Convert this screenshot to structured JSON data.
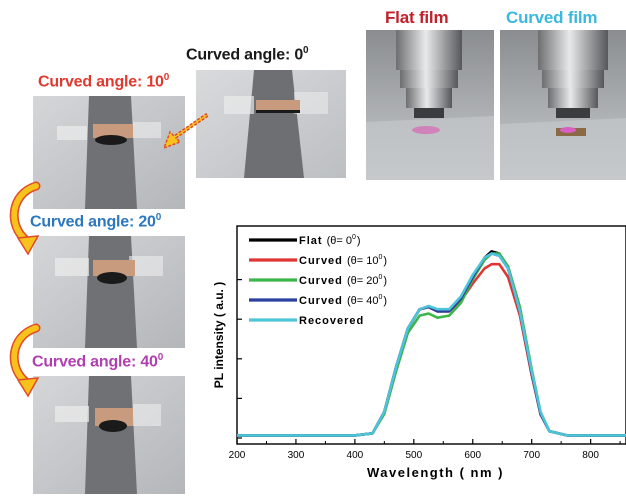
{
  "labels": {
    "angle0": {
      "text": "Curved angle: 0",
      "sup": "0",
      "color": "#1a1a1a"
    },
    "angle10": {
      "text": "Curved angle: 10",
      "sup": "0",
      "color": "#e03a2f"
    },
    "angle20": {
      "text": "Curved angle: 20",
      "sup": "0",
      "color": "#2b78bf"
    },
    "angle40": {
      "text": "Curved angle: 40",
      "sup": "0",
      "color": "#b13fb0"
    },
    "flat_film": {
      "text": "Flat film",
      "color": "#c0212c"
    },
    "curved_film": {
      "text": "Curved film",
      "color": "#3bb8e0"
    }
  },
  "chart_data": {
    "type": "line",
    "xlabel": "Wavelength ( nm )",
    "ylabel": "PL intensity ( a.u. )",
    "xlim": [
      200,
      860
    ],
    "x_ticks": [
      200,
      300,
      400,
      500,
      600,
      700,
      800
    ],
    "y_tick_labels": [],
    "legend_position": "top-left",
    "series": [
      {
        "name": "Flat (θ= 0°)",
        "color": "#000000",
        "legend_parts": [
          "Flat",
          "(θ= 0",
          "0",
          ")"
        ],
        "points": [
          [
            200,
            0.04
          ],
          [
            300,
            0.04
          ],
          [
            400,
            0.04
          ],
          [
            430,
            0.05
          ],
          [
            450,
            0.15
          ],
          [
            470,
            0.36
          ],
          [
            490,
            0.54
          ],
          [
            510,
            0.63
          ],
          [
            525,
            0.64
          ],
          [
            540,
            0.62
          ],
          [
            560,
            0.62
          ],
          [
            580,
            0.68
          ],
          [
            600,
            0.78
          ],
          [
            620,
            0.87
          ],
          [
            632,
            0.9
          ],
          [
            645,
            0.89
          ],
          [
            660,
            0.82
          ],
          [
            680,
            0.62
          ],
          [
            700,
            0.33
          ],
          [
            715,
            0.14
          ],
          [
            730,
            0.06
          ],
          [
            760,
            0.04
          ],
          [
            860,
            0.04
          ]
        ]
      },
      {
        "name": "Curved (θ= 10°)",
        "color": "#e03535",
        "legend_parts": [
          "Curved",
          "(θ= 10",
          "0",
          ")"
        ],
        "points": [
          [
            200,
            0.04
          ],
          [
            300,
            0.04
          ],
          [
            400,
            0.04
          ],
          [
            430,
            0.05
          ],
          [
            450,
            0.15
          ],
          [
            470,
            0.36
          ],
          [
            490,
            0.54
          ],
          [
            510,
            0.63
          ],
          [
            525,
            0.64
          ],
          [
            540,
            0.62
          ],
          [
            560,
            0.62
          ],
          [
            580,
            0.67
          ],
          [
            600,
            0.75
          ],
          [
            620,
            0.82
          ],
          [
            632,
            0.84
          ],
          [
            645,
            0.84
          ],
          [
            660,
            0.78
          ],
          [
            680,
            0.6
          ],
          [
            700,
            0.32
          ],
          [
            715,
            0.14
          ],
          [
            730,
            0.06
          ],
          [
            760,
            0.04
          ],
          [
            860,
            0.04
          ]
        ]
      },
      {
        "name": "Curved (θ= 20°)",
        "color": "#3cb64a",
        "legend_parts": [
          "Curved",
          "(θ= 20",
          "0",
          ")"
        ],
        "points": [
          [
            200,
            0.04
          ],
          [
            300,
            0.04
          ],
          [
            400,
            0.04
          ],
          [
            430,
            0.05
          ],
          [
            450,
            0.14
          ],
          [
            470,
            0.34
          ],
          [
            490,
            0.52
          ],
          [
            510,
            0.6
          ],
          [
            525,
            0.61
          ],
          [
            540,
            0.59
          ],
          [
            560,
            0.6
          ],
          [
            580,
            0.66
          ],
          [
            600,
            0.77
          ],
          [
            620,
            0.86
          ],
          [
            632,
            0.89
          ],
          [
            645,
            0.89
          ],
          [
            660,
            0.83
          ],
          [
            680,
            0.64
          ],
          [
            700,
            0.35
          ],
          [
            715,
            0.15
          ],
          [
            730,
            0.06
          ],
          [
            760,
            0.04
          ],
          [
            860,
            0.04
          ]
        ]
      },
      {
        "name": "Curved (θ= 40°)",
        "color": "#2b3f9e",
        "legend_parts": [
          "Curved",
          "(θ= 40",
          "0",
          ")"
        ],
        "points": [
          [
            200,
            0.04
          ],
          [
            300,
            0.04
          ],
          [
            400,
            0.04
          ],
          [
            430,
            0.05
          ],
          [
            450,
            0.15
          ],
          [
            470,
            0.36
          ],
          [
            490,
            0.54
          ],
          [
            510,
            0.63
          ],
          [
            525,
            0.64
          ],
          [
            540,
            0.62
          ],
          [
            560,
            0.62
          ],
          [
            580,
            0.68
          ],
          [
            600,
            0.78
          ],
          [
            620,
            0.87
          ],
          [
            632,
            0.89
          ],
          [
            645,
            0.88
          ],
          [
            660,
            0.82
          ],
          [
            680,
            0.62
          ],
          [
            700,
            0.33
          ],
          [
            715,
            0.14
          ],
          [
            730,
            0.06
          ],
          [
            760,
            0.04
          ],
          [
            860,
            0.04
          ]
        ]
      },
      {
        "name": "Recovered",
        "color": "#4ec4d8",
        "legend_parts": [
          "Recovered",
          "",
          "",
          ""
        ],
        "points": [
          [
            200,
            0.04
          ],
          [
            300,
            0.04
          ],
          [
            400,
            0.04
          ],
          [
            430,
            0.05
          ],
          [
            450,
            0.15
          ],
          [
            470,
            0.36
          ],
          [
            490,
            0.54
          ],
          [
            510,
            0.63
          ],
          [
            525,
            0.645
          ],
          [
            540,
            0.63
          ],
          [
            560,
            0.63
          ],
          [
            580,
            0.69
          ],
          [
            600,
            0.79
          ],
          [
            620,
            0.87
          ],
          [
            632,
            0.89
          ],
          [
            645,
            0.88
          ],
          [
            660,
            0.82
          ],
          [
            680,
            0.62
          ],
          [
            700,
            0.34
          ],
          [
            715,
            0.15
          ],
          [
            730,
            0.06
          ],
          [
            760,
            0.04
          ],
          [
            860,
            0.04
          ]
        ]
      }
    ]
  }
}
